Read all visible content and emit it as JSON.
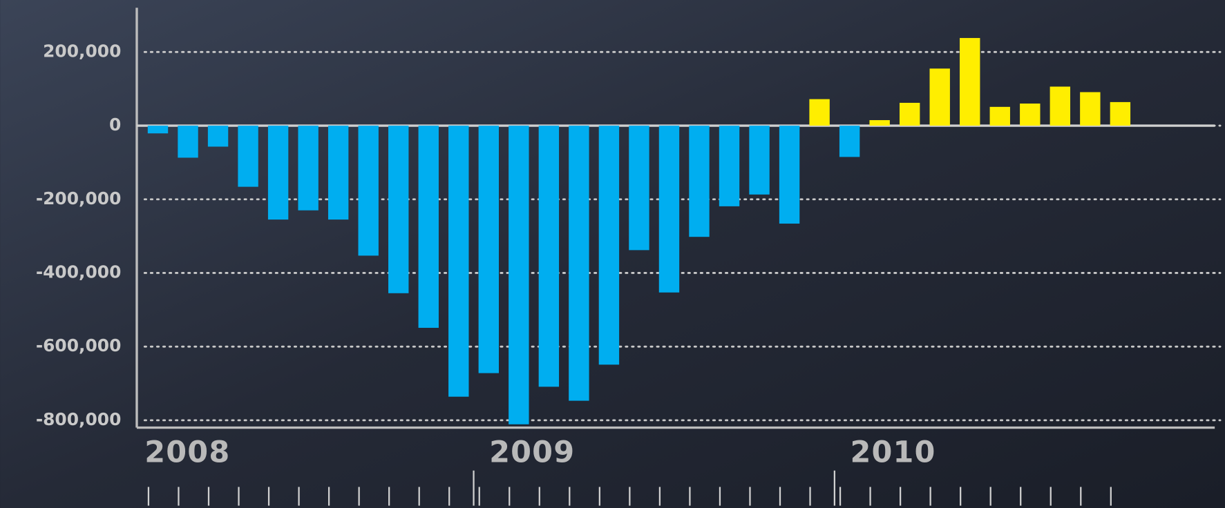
{
  "chart_data": {
    "type": "bar",
    "categories": [
      "2008",
      null,
      null,
      null,
      null,
      null,
      null,
      null,
      null,
      null,
      null,
      "2009",
      null,
      null,
      null,
      null,
      null,
      null,
      null,
      null,
      null,
      null,
      null,
      "2010",
      null,
      null,
      null,
      null,
      null,
      null,
      null,
      null,
      null
    ],
    "values": [
      -21000,
      -87000,
      -57000,
      -166000,
      -255000,
      -230000,
      -255000,
      -353000,
      -455000,
      -549000,
      -736000,
      -672000,
      -811000,
      -709000,
      -747000,
      -649000,
      -338000,
      -453000,
      -302000,
      -219000,
      -187000,
      -266000,
      72000,
      -85000,
      15000,
      62000,
      155000,
      238000,
      51000,
      60000,
      106000,
      91000,
      64000
    ],
    "colors": {
      "positive": "#ffee00",
      "negative": "#00aef0"
    },
    "ylim": [
      -820000,
      320000
    ],
    "yticks": [
      {
        "value": -800000,
        "label": "-800,000"
      },
      {
        "value": -600000,
        "label": "-600,000"
      },
      {
        "value": -400000,
        "label": "-400,000"
      },
      {
        "value": -200000,
        "label": "-200,000"
      },
      0,
      {
        "value": 200000,
        "label": "200,000"
      }
    ],
    "grid": true
  }
}
